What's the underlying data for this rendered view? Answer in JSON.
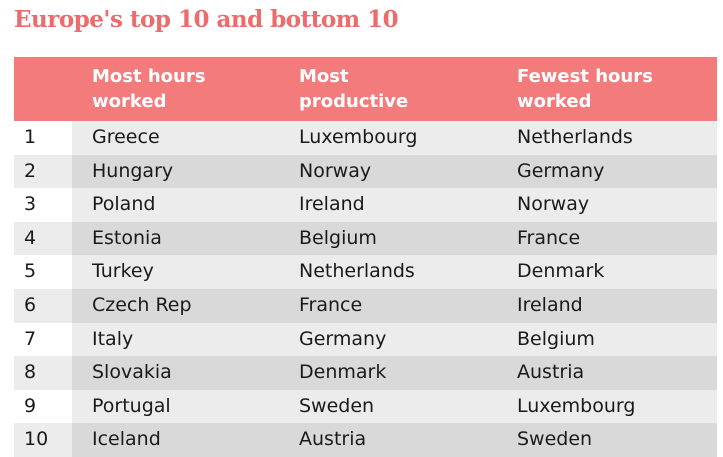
{
  "title": "Europe's top 10 and bottom 10",
  "headers": {
    "rank": "",
    "most_hours_line1": "Most hours",
    "most_hours_line2": "worked",
    "most_productive_line1": "Most",
    "most_productive_line2": "productive",
    "fewest_hours_line1": "Fewest hours",
    "fewest_hours_line2": "worked"
  },
  "rows": [
    {
      "rank": "1",
      "most_hours": "Greece",
      "most_productive": "Luxembourg",
      "fewest_hours": "Netherlands"
    },
    {
      "rank": "2",
      "most_hours": "Hungary",
      "most_productive": "Norway",
      "fewest_hours": "Germany"
    },
    {
      "rank": "3",
      "most_hours": "Poland",
      "most_productive": "Ireland",
      "fewest_hours": "Norway"
    },
    {
      "rank": "4",
      "most_hours": "Estonia",
      "most_productive": "Belgium",
      "fewest_hours": "France"
    },
    {
      "rank": "5",
      "most_hours": "Turkey",
      "most_productive": "Netherlands",
      "fewest_hours": "Denmark"
    },
    {
      "rank": "6",
      "most_hours": "Czech Rep",
      "most_productive": "France",
      "fewest_hours": "Ireland"
    },
    {
      "rank": "7",
      "most_hours": "Italy",
      "most_productive": "Germany",
      "fewest_hours": "Belgium"
    },
    {
      "rank": "8",
      "most_hours": "Slovakia",
      "most_productive": "Denmark",
      "fewest_hours": "Austria"
    },
    {
      "rank": "9",
      "most_hours": "Portugal",
      "most_productive": "Sweden",
      "fewest_hours": "Luxembourg"
    },
    {
      "rank": "10",
      "most_hours": "Iceland",
      "most_productive": "Austria",
      "fewest_hours": "Sweden"
    }
  ],
  "colors": {
    "title": "#ee6b6b",
    "header_bg": "#f47b7b",
    "row_light": "#ececec",
    "row_dark": "#d9d9d9"
  }
}
